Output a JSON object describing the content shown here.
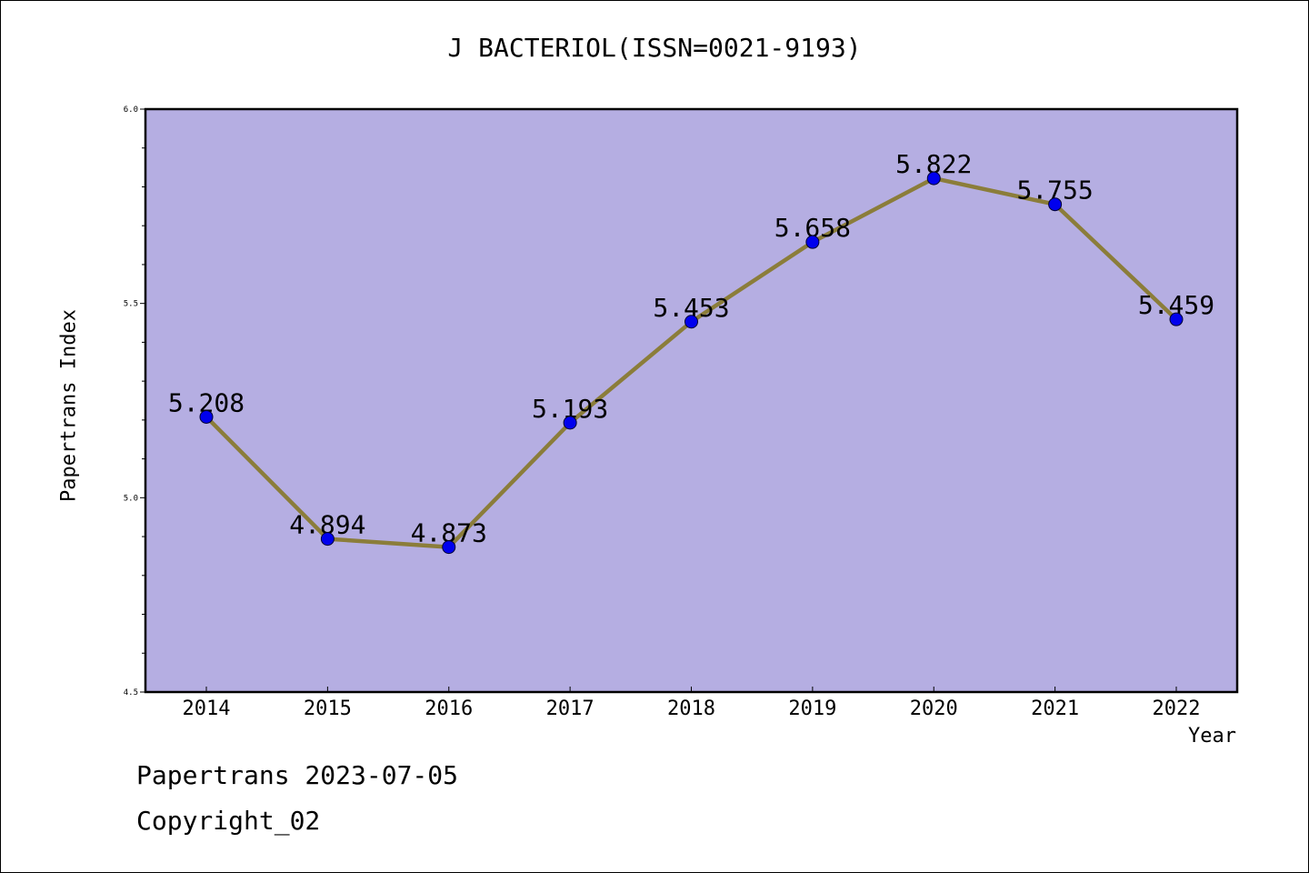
{
  "chart_data": {
    "type": "line",
    "title": "J BACTERIOL(ISSN=0021-9193)",
    "xlabel": "Year",
    "ylabel": "Papertrans Index",
    "categories": [
      "2014",
      "2015",
      "2016",
      "2017",
      "2018",
      "2019",
      "2020",
      "2021",
      "2022"
    ],
    "series": [
      {
        "values": [
          5.208,
          4.894,
          4.873,
          5.193,
          5.453,
          5.658,
          5.822,
          5.755,
          5.459
        ],
        "labels": [
          "5.208",
          "4.894",
          "4.873",
          "5.193",
          "5.453",
          "5.658",
          "5.822",
          "5.755",
          "5.459"
        ],
        "line_color": "#8b7d3a",
        "marker_color": "#0000ee"
      }
    ],
    "ylim": [
      4.5,
      6.0
    ],
    "yticks": [
      "4.5",
      "5.0",
      "5.5",
      "6.0"
    ],
    "plot_background": "#b5aee2",
    "grid": false
  },
  "footer": {
    "line1": "Papertrans 2023-07-05",
    "line2": "Copyright_02"
  }
}
